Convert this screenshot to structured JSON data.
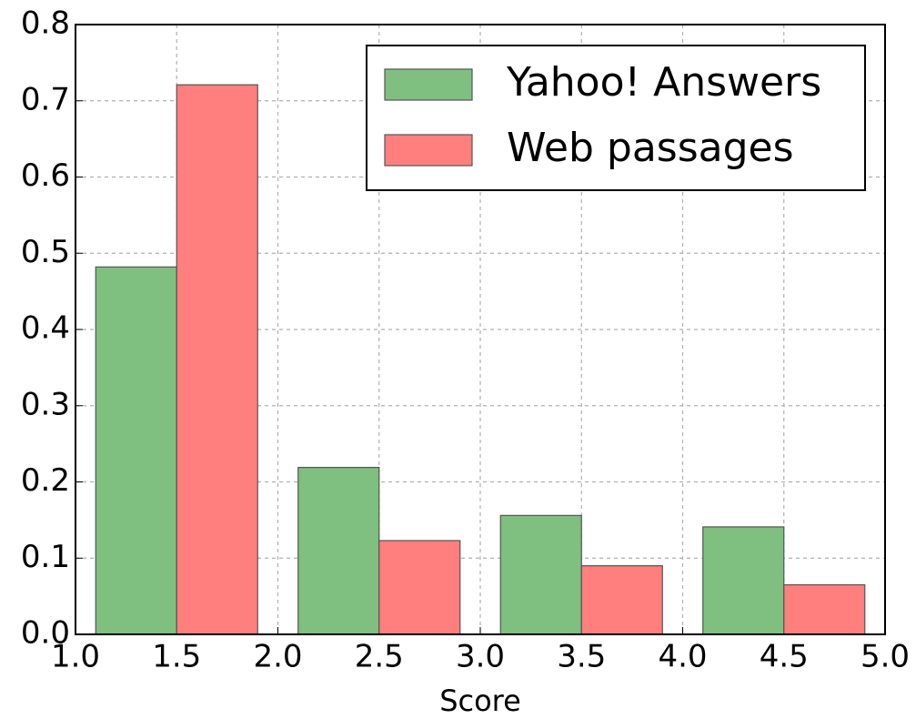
{
  "chart_data": {
    "type": "bar",
    "x_label": "Score",
    "series": [
      {
        "name": "Yahoo! Answers",
        "color": "#7fbf7f",
        "x": [
          1.1,
          2.1,
          3.1,
          4.1
        ],
        "values": [
          0.482,
          0.219,
          0.156,
          0.141
        ]
      },
      {
        "name": "Web passages",
        "color": "#ff7f7f",
        "x": [
          1.5,
          2.5,
          3.5,
          4.5
        ],
        "values": [
          0.721,
          0.123,
          0.09,
          0.065
        ]
      }
    ],
    "bar_width": 0.4,
    "xlim": [
      1,
      5
    ],
    "xticks": [
      {
        "value": 1,
        "label": "1.0"
      },
      1.5,
      {
        "value": 2,
        "label": "2.0"
      },
      2.5,
      {
        "value": 3,
        "label": "3.0"
      },
      3.5,
      {
        "value": 4,
        "label": "4.0"
      },
      4.5,
      {
        "value": 5,
        "label": "5.0"
      }
    ],
    "ylim": [
      0,
      0.8
    ],
    "yticks": [
      {
        "value": 0,
        "label": "0.0"
      },
      0.1,
      0.2,
      0.3,
      0.4,
      0.5,
      0.6,
      0.7,
      0.8
    ],
    "grid": true,
    "legend": "upper right"
  }
}
